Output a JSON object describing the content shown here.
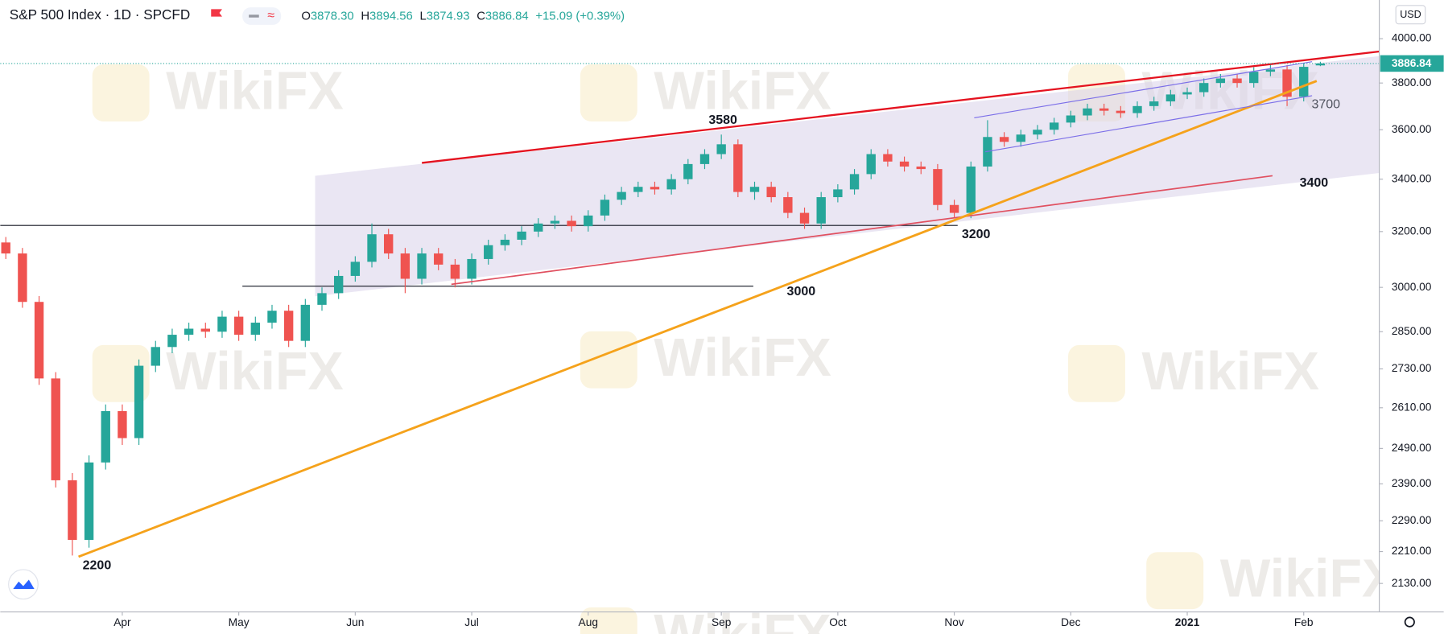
{
  "chart_data": {
    "type": "candlestick",
    "title": "S&P 500 Index · 1D · SPCFD",
    "header_ohlc": [
      {
        "label": "O",
        "value": "3878.30"
      },
      {
        "label": "H",
        "value": "3894.56"
      },
      {
        "label": "L",
        "value": "3874.93"
      },
      {
        "label": "C",
        "value": "3886.84"
      }
    ],
    "header_change": "+15.09 (+0.39%)",
    "currency": "USD",
    "watermark": "WikiFX",
    "log_scale": true,
    "grid": false,
    "up_color": "#26a69a",
    "down_color": "#ef5350",
    "ylim": [
      2061,
      4183
    ],
    "yticks": [
      {
        "value": 2130,
        "label": "2130.00"
      },
      {
        "value": 2210,
        "label": "2210.00"
      },
      {
        "value": 2290,
        "label": "2290.00"
      },
      {
        "value": 2390,
        "label": "2390.00"
      },
      {
        "value": 2490,
        "label": "2490.00"
      },
      {
        "value": 2610,
        "label": "2610.00"
      },
      {
        "value": 2730,
        "label": "2730.00"
      },
      {
        "value": 2850,
        "label": "2850.00"
      },
      {
        "value": 3000,
        "label": "3000.00"
      },
      {
        "value": 3200,
        "label": "3200.00"
      },
      {
        "value": 3400,
        "label": "3400.00"
      },
      {
        "value": 3600,
        "label": "3600.00"
      },
      {
        "value": 3800,
        "label": "3800.00"
      },
      {
        "value": 4000,
        "label": "4000.00"
      }
    ],
    "annotations": [
      "3580",
      "3000",
      "3200",
      "3700",
      "3400",
      "2200"
    ],
    "categories": [
      null,
      null,
      null,
      null,
      null,
      null,
      null,
      "Apr",
      null,
      null,
      null,
      null,
      null,
      null,
      "May",
      null,
      null,
      null,
      null,
      null,
      null,
      "Jun",
      null,
      null,
      null,
      null,
      null,
      null,
      "Jul",
      null,
      null,
      null,
      null,
      null,
      null,
      "Aug",
      null,
      null,
      null,
      null,
      null,
      null,
      null,
      "Sep",
      null,
      null,
      null,
      null,
      null,
      null,
      "Oct",
      null,
      null,
      null,
      null,
      null,
      null,
      "Nov",
      null,
      null,
      null,
      null,
      null,
      null,
      "Dec",
      null,
      null,
      null,
      null,
      null,
      null,
      "2021",
      null,
      null,
      null,
      null,
      null,
      null,
      "Feb",
      null
    ],
    "open": [
      3160,
      3120,
      2950,
      2700,
      2400,
      2240,
      2450,
      2600,
      2520,
      2740,
      2800,
      2840,
      2860,
      2850,
      2900,
      2840,
      2880,
      2920,
      2820,
      2940,
      2980,
      3040,
      3090,
      3190,
      3120,
      3030,
      3120,
      3080,
      3030,
      3100,
      3150,
      3170,
      3200,
      3230,
      3240,
      3220,
      3260,
      3320,
      3350,
      3370,
      3360,
      3400,
      3460,
      3500,
      3540,
      3350,
      3370,
      3330,
      3270,
      3230,
      3330,
      3360,
      3420,
      3500,
      3470,
      3450,
      3440,
      3300,
      3270,
      3450,
      3570,
      3550,
      3580,
      3600,
      3630,
      3660,
      3690,
      3680,
      3670,
      3700,
      3720,
      3750,
      3760,
      3800,
      3820,
      3800,
      3850,
      3860,
      3740,
      3878.3
    ],
    "high": [
      3180,
      3140,
      2970,
      2720,
      2420,
      2470,
      2620,
      2620,
      2760,
      2820,
      2860,
      2880,
      2880,
      2920,
      2920,
      2900,
      2940,
      2940,
      2960,
      3000,
      3060,
      3110,
      3230,
      3210,
      3140,
      3140,
      3140,
      3100,
      3120,
      3170,
      3190,
      3220,
      3250,
      3260,
      3260,
      3280,
      3340,
      3370,
      3390,
      3390,
      3420,
      3480,
      3520,
      3580,
      3560,
      3390,
      3390,
      3350,
      3290,
      3350,
      3380,
      3440,
      3520,
      3520,
      3490,
      3470,
      3460,
      3320,
      3470,
      3640,
      3590,
      3600,
      3620,
      3650,
      3680,
      3710,
      3710,
      3700,
      3720,
      3740,
      3770,
      3780,
      3820,
      3840,
      3840,
      3870,
      3880,
      3880,
      3890,
      3894.56
    ],
    "low": [
      3100,
      2930,
      2680,
      2380,
      2200,
      2220,
      2430,
      2500,
      2500,
      2720,
      2780,
      2820,
      2830,
      2830,
      2820,
      2820,
      2860,
      2800,
      2800,
      2920,
      2960,
      3020,
      3070,
      3100,
      2980,
      3010,
      3060,
      3000,
      3010,
      3080,
      3130,
      3150,
      3180,
      3210,
      3200,
      3200,
      3240,
      3300,
      3330,
      3340,
      3340,
      3380,
      3440,
      3480,
      3330,
      3320,
      3310,
      3250,
      3210,
      3210,
      3310,
      3340,
      3400,
      3450,
      3430,
      3420,
      3280,
      3250,
      3250,
      3430,
      3530,
      3530,
      3560,
      3580,
      3610,
      3640,
      3660,
      3650,
      3650,
      3680,
      3700,
      3730,
      3740,
      3780,
      3780,
      3780,
      3830,
      3700,
      3720,
      3874.93
    ],
    "close": [
      3120,
      2950,
      2700,
      2400,
      2240,
      2450,
      2600,
      2520,
      2740,
      2800,
      2840,
      2860,
      2850,
      2900,
      2840,
      2880,
      2920,
      2820,
      2940,
      2980,
      3040,
      3090,
      3190,
      3120,
      3030,
      3120,
      3080,
      3030,
      3100,
      3150,
      3170,
      3200,
      3230,
      3240,
      3220,
      3260,
      3320,
      3350,
      3370,
      3360,
      3400,
      3460,
      3500,
      3540,
      3350,
      3370,
      3330,
      3270,
      3230,
      3330,
      3360,
      3420,
      3500,
      3470,
      3450,
      3440,
      3300,
      3270,
      3450,
      3570,
      3550,
      3580,
      3600,
      3630,
      3660,
      3690,
      3680,
      3670,
      3700,
      3720,
      3750,
      3760,
      3800,
      3820,
      3800,
      3850,
      3860,
      3740,
      3871.75,
      3886.84
    ]
  }
}
